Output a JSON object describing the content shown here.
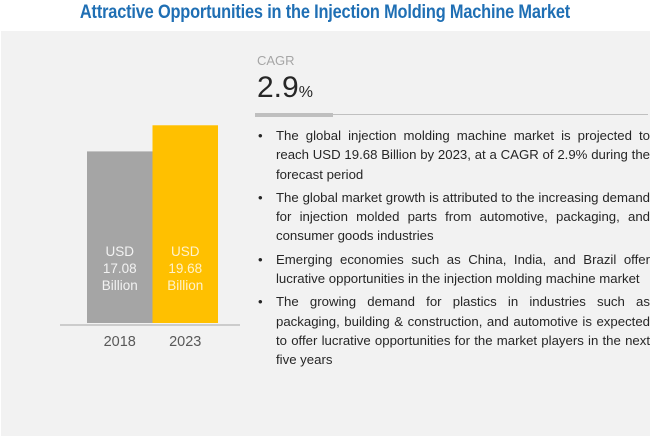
{
  "header": {
    "title": "Attractive Opportunities in the Injection Molding Machine Market"
  },
  "cagr": {
    "label": "CAGR",
    "value": "2.9",
    "unit": "%"
  },
  "bullets": [
    "The global injection molding machine market is projected to reach USD 19.68 Billion by 2023, at a CAGR of 2.9% during the forecast period",
    "The global market growth is attributed to the increasing demand for injection molded parts from automotive, packaging, and consumer goods industries",
    "Emerging economies such as China, India, and Brazil offer lucrative opportunities in the injection molding machine market",
    "The growing demand for plastics in industries such as packaging, building & construction, and automotive is expected to offer lucrative opportunities for the market players in the next five years"
  ],
  "bullet_glyph": "•",
  "chart_data": {
    "type": "bar",
    "title": "",
    "xlabel": "",
    "ylabel": "",
    "categories": [
      "2018",
      "2023"
    ],
    "values": [
      17.08,
      19.68
    ],
    "unit": "USD Billion",
    "data_labels": [
      [
        "USD",
        "17.08",
        "Billion"
      ],
      [
        "USD",
        "19.68",
        "Billion"
      ]
    ],
    "colors": [
      "#a5a5a5",
      "#ffc000"
    ],
    "label_colors": [
      "#f2f2f2",
      "#fff2cc"
    ],
    "ylim": [
      0,
      21.4
    ],
    "grid": false,
    "legend": "none"
  }
}
